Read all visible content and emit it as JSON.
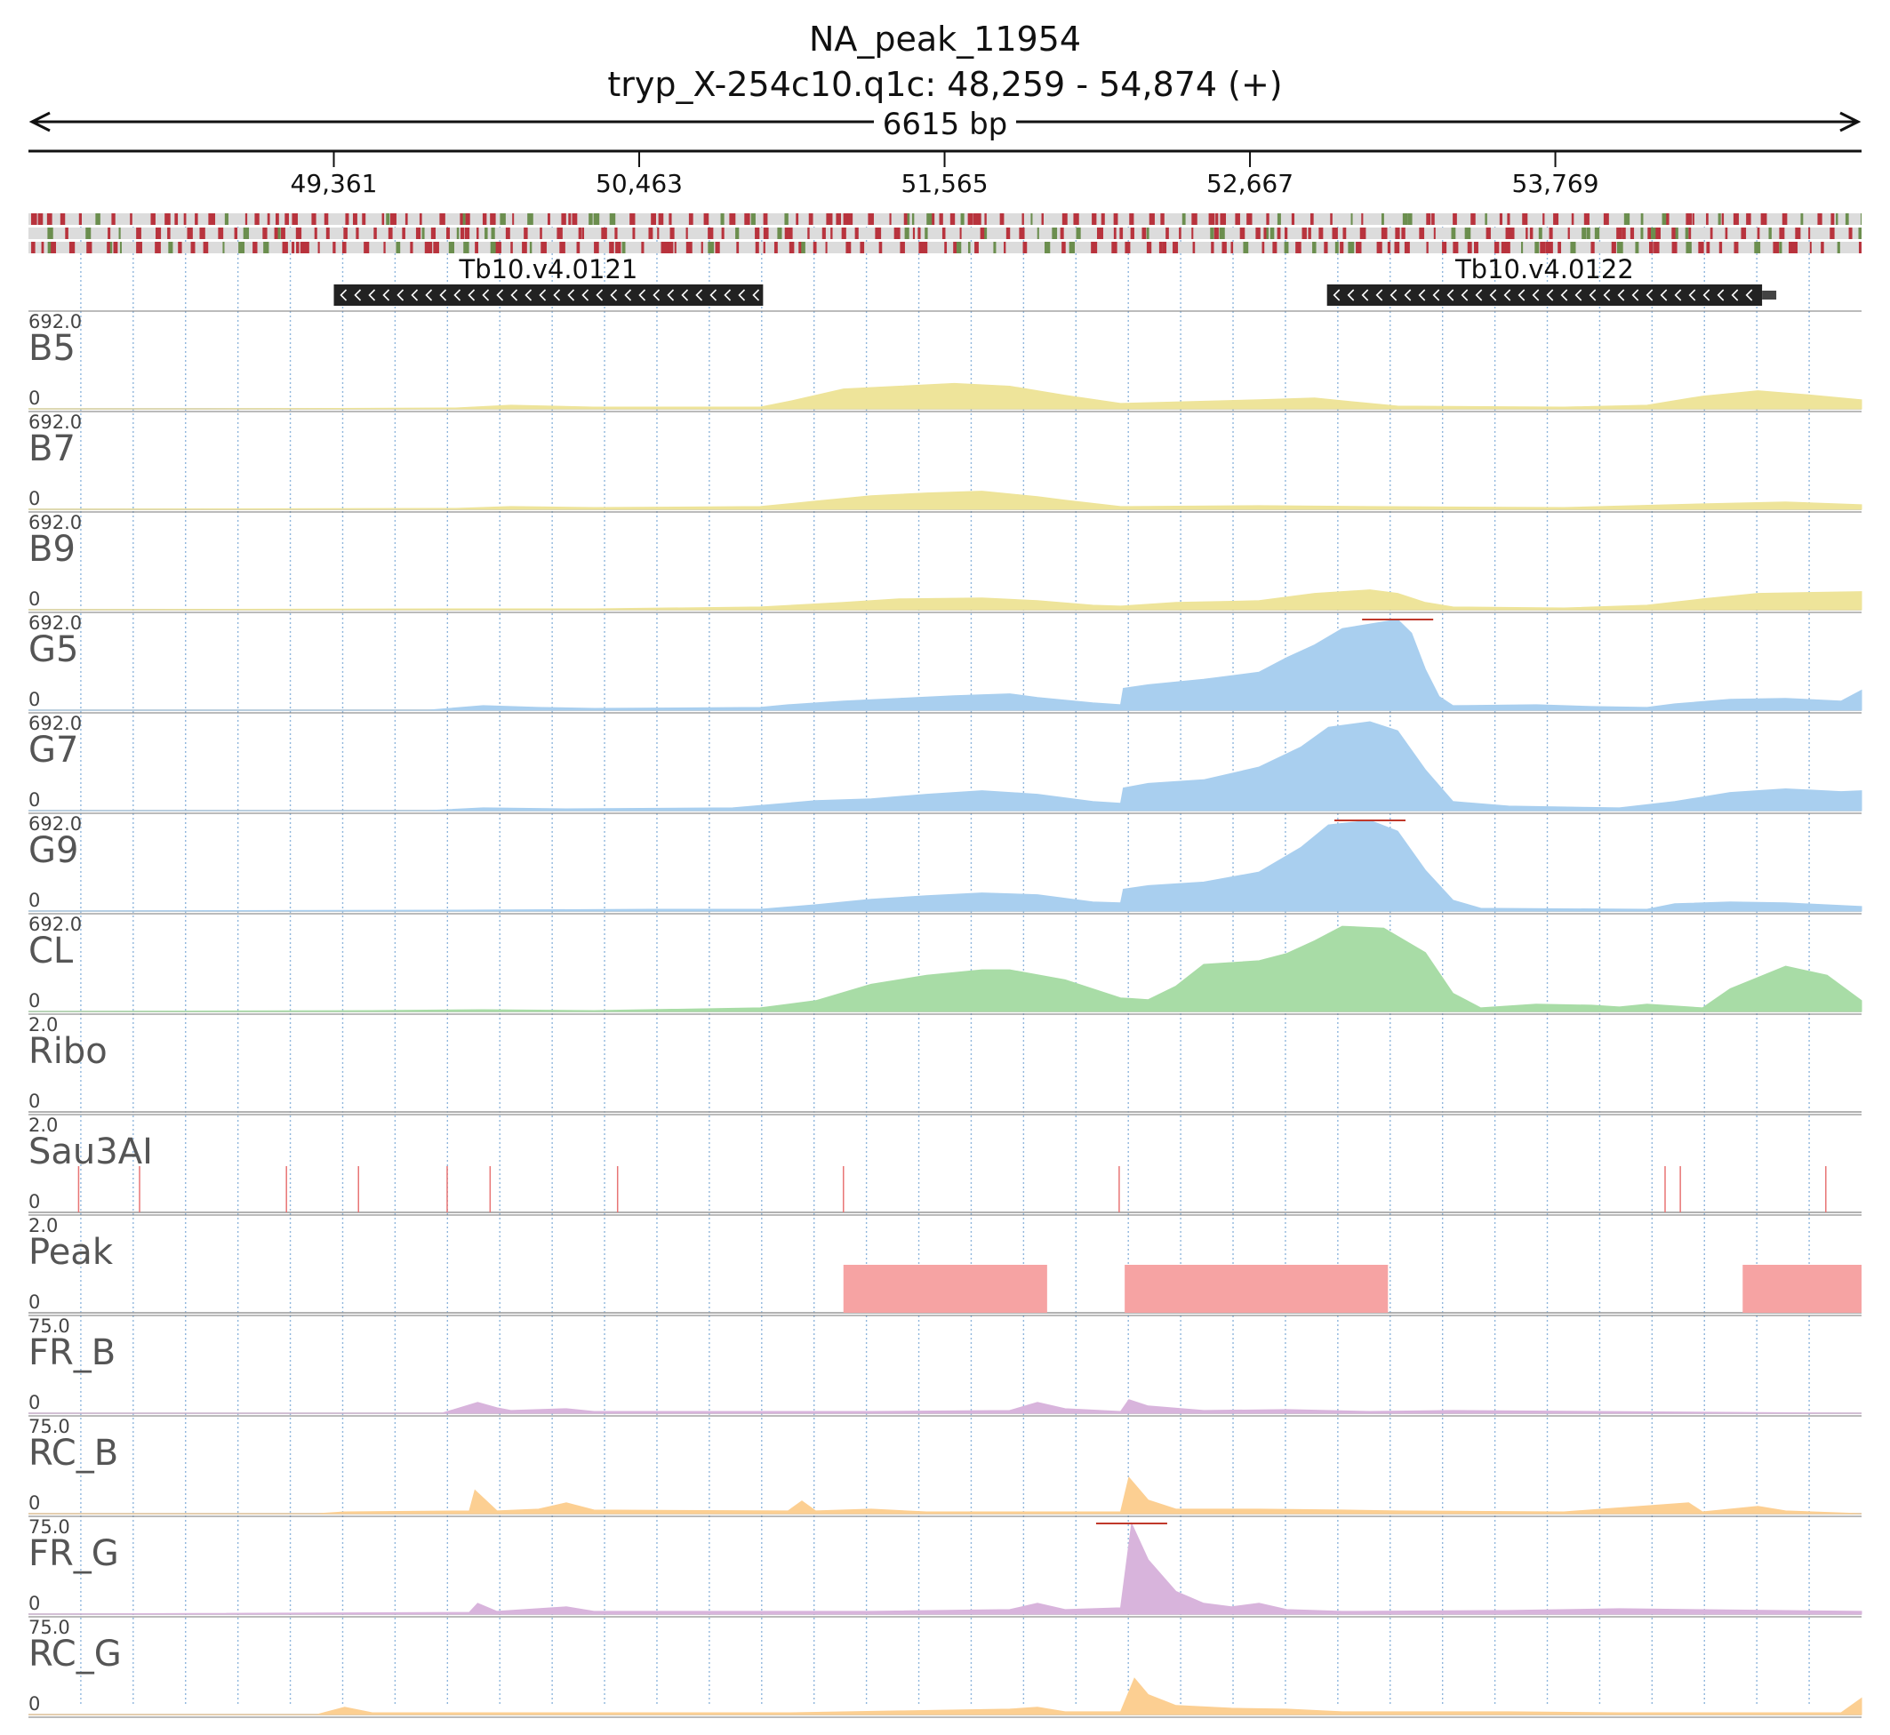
{
  "header": {
    "title": "NA_peak_11954",
    "locus": "tryp_X-254c10.q1c: 48,259 - 54,874 (+)",
    "span": "6615 bp"
  },
  "axis": {
    "start": 48259,
    "end": 54874,
    "ticks": [
      {
        "pos": 49361,
        "label": "49,361"
      },
      {
        "pos": 50463,
        "label": "50,463"
      },
      {
        "pos": 51565,
        "label": "51,565"
      },
      {
        "pos": 52667,
        "label": "52,667"
      },
      {
        "pos": 53769,
        "label": "53,769"
      }
    ]
  },
  "genes": [
    {
      "name": "Tb10.v4.0121",
      "start": 49361,
      "end": 50910,
      "strand": "-"
    },
    {
      "name": "Tb10.v4.0122",
      "start": 52945,
      "end": 54515,
      "strand": "-"
    }
  ],
  "colors": {
    "yellow": "#eee49a",
    "blue": "#a9cfef",
    "green": "#a8dca6",
    "red": "#f6a3a3",
    "purple": "#d8b4dc",
    "orange": "#fccf92",
    "seq_red": "#b8333d",
    "seq_green": "#6b8e4e"
  },
  "tracks": [
    {
      "name": "B5",
      "max": "692.0",
      "min": "0",
      "color": "yellow",
      "profile": [
        [
          48259,
          0
        ],
        [
          48900,
          0
        ],
        [
          49800,
          1
        ],
        [
          50000,
          4
        ],
        [
          50300,
          2
        ],
        [
          50900,
          2
        ],
        [
          51000,
          8
        ],
        [
          51200,
          22
        ],
        [
          51400,
          25
        ],
        [
          51600,
          28
        ],
        [
          51800,
          25
        ],
        [
          52000,
          15
        ],
        [
          52200,
          6
        ],
        [
          52700,
          10
        ],
        [
          52900,
          12
        ],
        [
          53100,
          6
        ],
        [
          53200,
          3
        ],
        [
          53800,
          2
        ],
        [
          54100,
          4
        ],
        [
          54300,
          14
        ],
        [
          54500,
          20
        ],
        [
          54700,
          15
        ],
        [
          54874,
          10
        ]
      ]
    },
    {
      "name": "B7",
      "max": "692.0",
      "min": "0",
      "color": "yellow",
      "profile": [
        [
          48259,
          0
        ],
        [
          49800,
          1
        ],
        [
          50000,
          3
        ],
        [
          50300,
          2
        ],
        [
          50900,
          3
        ],
        [
          51100,
          9
        ],
        [
          51300,
          15
        ],
        [
          51500,
          18
        ],
        [
          51700,
          20
        ],
        [
          51900,
          14
        ],
        [
          52000,
          10
        ],
        [
          52200,
          3
        ],
        [
          52700,
          4
        ],
        [
          53100,
          3
        ],
        [
          53800,
          2
        ],
        [
          54300,
          6
        ],
        [
          54600,
          8
        ],
        [
          54874,
          5
        ]
      ]
    },
    {
      "name": "B9",
      "max": "692.0",
      "min": "0",
      "color": "yellow",
      "profile": [
        [
          48259,
          0
        ],
        [
          49800,
          1
        ],
        [
          50300,
          1
        ],
        [
          50900,
          3
        ],
        [
          51200,
          8
        ],
        [
          51400,
          12
        ],
        [
          51700,
          13
        ],
        [
          51900,
          10
        ],
        [
          52100,
          5
        ],
        [
          52200,
          4
        ],
        [
          52400,
          8
        ],
        [
          52700,
          10
        ],
        [
          52900,
          18
        ],
        [
          53100,
          22
        ],
        [
          53200,
          18
        ],
        [
          53300,
          8
        ],
        [
          53400,
          3
        ],
        [
          53800,
          2
        ],
        [
          54100,
          5
        ],
        [
          54300,
          12
        ],
        [
          54500,
          18
        ],
        [
          54874,
          20
        ]
      ]
    },
    {
      "name": "G5",
      "max": "692.0",
      "min": "0",
      "color": "blue",
      "profile": [
        [
          48259,
          0
        ],
        [
          49700,
          0
        ],
        [
          49900,
          5
        ],
        [
          50100,
          3
        ],
        [
          50300,
          2
        ],
        [
          50900,
          3
        ],
        [
          51000,
          6
        ],
        [
          51200,
          10
        ],
        [
          51400,
          13
        ],
        [
          51600,
          16
        ],
        [
          51800,
          18
        ],
        [
          51900,
          14
        ],
        [
          52100,
          8
        ],
        [
          52200,
          6
        ],
        [
          52210,
          24
        ],
        [
          52300,
          28
        ],
        [
          52500,
          34
        ],
        [
          52700,
          42
        ],
        [
          52800,
          58
        ],
        [
          52900,
          72
        ],
        [
          53000,
          90
        ],
        [
          53200,
          100
        ],
        [
          53250,
          85
        ],
        [
          53300,
          45
        ],
        [
          53350,
          15
        ],
        [
          53400,
          5
        ],
        [
          53700,
          6
        ],
        [
          53900,
          4
        ],
        [
          54100,
          3
        ],
        [
          54200,
          7
        ],
        [
          54400,
          12
        ],
        [
          54600,
          13
        ],
        [
          54800,
          10
        ],
        [
          54874,
          22
        ]
      ]
    },
    {
      "name": "G7",
      "max": "692.0",
      "min": "0",
      "color": "blue",
      "profile": [
        [
          48259,
          0
        ],
        [
          49700,
          0
        ],
        [
          49900,
          3
        ],
        [
          50200,
          2
        ],
        [
          50800,
          3
        ],
        [
          51100,
          11
        ],
        [
          51300,
          13
        ],
        [
          51500,
          18
        ],
        [
          51700,
          22
        ],
        [
          51900,
          18
        ],
        [
          52100,
          10
        ],
        [
          52200,
          8
        ],
        [
          52210,
          25
        ],
        [
          52300,
          30
        ],
        [
          52500,
          34
        ],
        [
          52700,
          48
        ],
        [
          52850,
          70
        ],
        [
          52950,
          92
        ],
        [
          53100,
          98
        ],
        [
          53200,
          88
        ],
        [
          53300,
          45
        ],
        [
          53400,
          10
        ],
        [
          53600,
          5
        ],
        [
          54000,
          3
        ],
        [
          54200,
          10
        ],
        [
          54400,
          20
        ],
        [
          54600,
          24
        ],
        [
          54800,
          21
        ],
        [
          54874,
          22
        ]
      ]
    },
    {
      "name": "G9",
      "max": "692.0",
      "min": "0",
      "color": "blue",
      "profile": [
        [
          48259,
          0
        ],
        [
          49800,
          1
        ],
        [
          50500,
          2
        ],
        [
          50900,
          2
        ],
        [
          51100,
          7
        ],
        [
          51300,
          13
        ],
        [
          51500,
          17
        ],
        [
          51700,
          20
        ],
        [
          51900,
          18
        ],
        [
          52100,
          10
        ],
        [
          52200,
          9
        ],
        [
          52210,
          24
        ],
        [
          52300,
          28
        ],
        [
          52500,
          32
        ],
        [
          52700,
          43
        ],
        [
          52850,
          70
        ],
        [
          52950,
          95
        ],
        [
          53100,
          100
        ],
        [
          53200,
          88
        ],
        [
          53300,
          45
        ],
        [
          53400,
          12
        ],
        [
          53500,
          3
        ],
        [
          54100,
          2
        ],
        [
          54200,
          8
        ],
        [
          54400,
          10
        ],
        [
          54600,
          9
        ],
        [
          54874,
          5
        ]
      ]
    },
    {
      "name": "CL",
      "max": "692.0",
      "min": "0",
      "color": "green",
      "profile": [
        [
          48259,
          0
        ],
        [
          49500,
          1
        ],
        [
          49900,
          2
        ],
        [
          50300,
          1
        ],
        [
          50900,
          4
        ],
        [
          51100,
          12
        ],
        [
          51300,
          30
        ],
        [
          51500,
          40
        ],
        [
          51700,
          46
        ],
        [
          51800,
          46
        ],
        [
          52000,
          35
        ],
        [
          52200,
          15
        ],
        [
          52300,
          13
        ],
        [
          52400,
          28
        ],
        [
          52500,
          52
        ],
        [
          52700,
          56
        ],
        [
          52800,
          64
        ],
        [
          52900,
          78
        ],
        [
          53000,
          94
        ],
        [
          53150,
          92
        ],
        [
          53300,
          65
        ],
        [
          53400,
          20
        ],
        [
          53500,
          4
        ],
        [
          53700,
          8
        ],
        [
          53900,
          7
        ],
        [
          54000,
          5
        ],
        [
          54100,
          8
        ],
        [
          54300,
          4
        ],
        [
          54400,
          25
        ],
        [
          54600,
          50
        ],
        [
          54750,
          40
        ],
        [
          54874,
          12
        ]
      ]
    },
    {
      "name": "Ribo",
      "max": "2.0",
      "min": "0",
      "color": "red",
      "profile": []
    },
    {
      "name": "Sau3AI",
      "max": "2.0",
      "min": "0",
      "color": "red",
      "profile": []
    },
    {
      "name": "Peak",
      "max": "2.0",
      "min": "0",
      "color": "red",
      "profile": []
    },
    {
      "name": "FR_B",
      "max": "75.0",
      "min": "0",
      "color": "purple",
      "profile": [
        [
          48259,
          0
        ],
        [
          49750,
          0
        ],
        [
          49880,
          12
        ],
        [
          49950,
          6
        ],
        [
          50000,
          3
        ],
        [
          50200,
          5
        ],
        [
          50300,
          2
        ],
        [
          51300,
          2
        ],
        [
          51800,
          3
        ],
        [
          51900,
          12
        ],
        [
          52000,
          5
        ],
        [
          52200,
          2
        ],
        [
          52230,
          15
        ],
        [
          52300,
          8
        ],
        [
          52500,
          3
        ],
        [
          52800,
          4
        ],
        [
          53100,
          2
        ],
        [
          53400,
          3
        ],
        [
          54874,
          0
        ]
      ]
    },
    {
      "name": "RC_B",
      "max": "75.0",
      "min": "0",
      "color": "orange",
      "profile": [
        [
          48259,
          0
        ],
        [
          49300,
          0
        ],
        [
          49400,
          2
        ],
        [
          49850,
          3
        ],
        [
          49870,
          26
        ],
        [
          49950,
          3
        ],
        [
          50100,
          5
        ],
        [
          50200,
          12
        ],
        [
          50300,
          4
        ],
        [
          51000,
          3
        ],
        [
          51050,
          14
        ],
        [
          51100,
          3
        ],
        [
          51300,
          5
        ],
        [
          51500,
          2
        ],
        [
          52200,
          2
        ],
        [
          52230,
          40
        ],
        [
          52300,
          15
        ],
        [
          52400,
          5
        ],
        [
          52700,
          5
        ],
        [
          53000,
          4
        ],
        [
          53200,
          3
        ],
        [
          53800,
          2
        ],
        [
          54250,
          12
        ],
        [
          54300,
          2
        ],
        [
          54500,
          8
        ],
        [
          54600,
          3
        ],
        [
          54874,
          0
        ]
      ]
    },
    {
      "name": "FR_G",
      "max": "75.0",
      "min": "0",
      "color": "purple",
      "profile": [
        [
          48259,
          0
        ],
        [
          49850,
          2
        ],
        [
          49880,
          12
        ],
        [
          49950,
          3
        ],
        [
          50200,
          8
        ],
        [
          50300,
          3
        ],
        [
          50900,
          3
        ],
        [
          51300,
          3
        ],
        [
          51800,
          5
        ],
        [
          51900,
          12
        ],
        [
          52000,
          5
        ],
        [
          52200,
          7
        ],
        [
          52240,
          100
        ],
        [
          52300,
          60
        ],
        [
          52400,
          25
        ],
        [
          52500,
          12
        ],
        [
          52600,
          8
        ],
        [
          52700,
          12
        ],
        [
          52800,
          5
        ],
        [
          53000,
          3
        ],
        [
          53600,
          4
        ],
        [
          54000,
          6
        ],
        [
          54874,
          3
        ]
      ]
    },
    {
      "name": "RC_G",
      "max": "75.0",
      "min": "0",
      "color": "orange",
      "profile": [
        [
          48259,
          0
        ],
        [
          49300,
          0
        ],
        [
          49400,
          8
        ],
        [
          49500,
          2
        ],
        [
          50200,
          2
        ],
        [
          51000,
          2
        ],
        [
          51400,
          4
        ],
        [
          51800,
          6
        ],
        [
          51900,
          8
        ],
        [
          52000,
          3
        ],
        [
          52200,
          3
        ],
        [
          52250,
          40
        ],
        [
          52300,
          22
        ],
        [
          52400,
          10
        ],
        [
          52600,
          7
        ],
        [
          52800,
          6
        ],
        [
          53000,
          3
        ],
        [
          53600,
          3
        ],
        [
          54000,
          2
        ],
        [
          54800,
          2
        ],
        [
          54874,
          18
        ]
      ]
    }
  ],
  "sau3ai_sites": [
    48440,
    48660,
    49190,
    49450,
    49770,
    49925,
    50385,
    51200,
    52195,
    54165,
    54220,
    54745
  ],
  "peaks": [
    [
      51200,
      51935
    ],
    [
      52215,
      53165
    ],
    [
      54445,
      54874
    ]
  ]
}
